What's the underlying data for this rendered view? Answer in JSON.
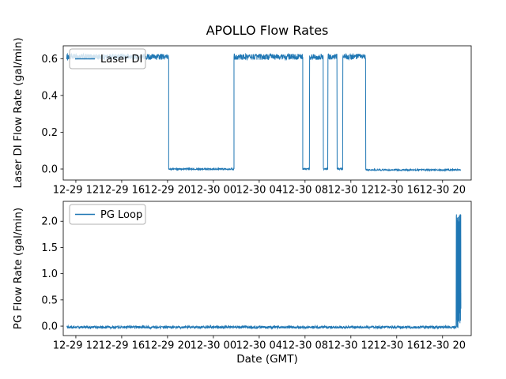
{
  "figure": {
    "title": "APOLLO Flow Rates",
    "xlabel": "Date (GMT)",
    "accent_color": "#1f77b4",
    "background_color": "#ffffff"
  },
  "chart_data": [
    {
      "type": "line",
      "ylabel": "Laser DI Flow Rate (gal/min)",
      "legend": "Laser DI",
      "legend_position": "upper left",
      "grid": false,
      "color": "#1f77b4",
      "x_axis_note": "hours since 12-29 00:00 GMT",
      "xlim": [
        10.9,
        46.5
      ],
      "ylim": [
        -0.06,
        0.67
      ],
      "x_ticks": [
        12,
        16,
        20,
        24,
        28,
        32,
        36,
        40,
        44
      ],
      "x_tick_labels": [
        "12-29 12",
        "12-29 16",
        "12-29 20",
        "12-30 00",
        "12-30 04",
        "12-30 08",
        "12-30 12",
        "12-30 16",
        "12-30 20"
      ],
      "y_ticks": [
        0.0,
        0.2,
        0.4,
        0.6
      ],
      "y_tick_labels": [
        "0.0",
        "0.2",
        "0.4",
        "0.6"
      ],
      "segments": [
        {
          "t_start": 11.2,
          "t_end": 20.1,
          "value": 0.61,
          "noise": 0.016
        },
        {
          "t_start": 20.1,
          "t_end": 25.8,
          "value": 0.0,
          "noise": 0.004
        },
        {
          "t_start": 25.8,
          "t_end": 31.8,
          "value": 0.61,
          "noise": 0.016
        },
        {
          "t_start": 31.8,
          "t_end": 32.4,
          "value": 0.0,
          "noise": 0.004
        },
        {
          "t_start": 32.4,
          "t_end": 33.6,
          "value": 0.61,
          "noise": 0.016
        },
        {
          "t_start": 33.6,
          "t_end": 34.0,
          "value": 0.0,
          "noise": 0.004
        },
        {
          "t_start": 34.0,
          "t_end": 34.8,
          "value": 0.61,
          "noise": 0.016
        },
        {
          "t_start": 34.8,
          "t_end": 35.3,
          "value": 0.0,
          "noise": 0.004
        },
        {
          "t_start": 35.3,
          "t_end": 37.3,
          "value": 0.61,
          "noise": 0.016
        },
        {
          "t_start": 37.3,
          "t_end": 45.6,
          "value": -0.005,
          "noise": 0.004
        }
      ]
    },
    {
      "type": "line",
      "ylabel": "PG Flow Rate (gal/min)",
      "legend": "PG Loop",
      "legend_position": "upper left",
      "grid": false,
      "color": "#1f77b4",
      "x_axis_note": "hours since 12-29 00:00 GMT",
      "xlim": [
        10.9,
        46.5
      ],
      "ylim": [
        -0.18,
        2.38
      ],
      "x_ticks": [
        12,
        16,
        20,
        24,
        28,
        32,
        36,
        40,
        44
      ],
      "x_tick_labels": [
        "12-29 12",
        "12-29 16",
        "12-29 20",
        "12-30 00",
        "12-30 04",
        "12-30 08",
        "12-30 12",
        "12-30 16",
        "12-30 20"
      ],
      "y_ticks": [
        0.0,
        0.5,
        1.0,
        1.5,
        2.0
      ],
      "y_tick_labels": [
        "0.0",
        "0.5",
        "1.0",
        "1.5",
        "2.0"
      ],
      "segments": [
        {
          "t_start": 11.2,
          "t_end": 45.2,
          "value": -0.02,
          "noise": 0.025
        },
        {
          "t_start": 45.2,
          "t_end": 45.6,
          "value": 1.05,
          "noise": 1.1
        }
      ]
    }
  ]
}
